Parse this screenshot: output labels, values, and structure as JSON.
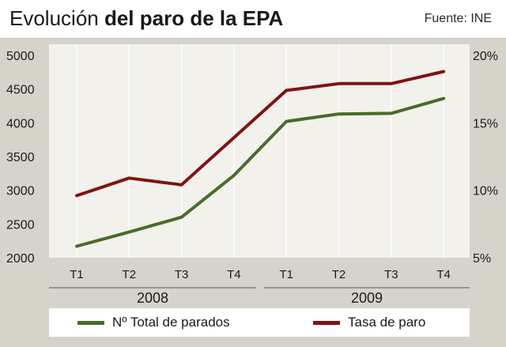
{
  "header": {
    "title_regular": "Evolución",
    "title_bold": "del paro de la EPA",
    "source": "Fuente: INE"
  },
  "chart_data": {
    "type": "line",
    "categories": [
      "T1",
      "T2",
      "T3",
      "T4",
      "T1",
      "T2",
      "T3",
      "T4"
    ],
    "groups": [
      {
        "label": "2008",
        "quarters": [
          "T1",
          "T2",
          "T3",
          "T4"
        ]
      },
      {
        "label": "2009",
        "quarters": [
          "T1",
          "T2",
          "T3",
          "T4"
        ]
      }
    ],
    "series": [
      {
        "name": "Nº Total de parados",
        "axis": "left",
        "color": "#4a6b2a",
        "values": [
          2170,
          2380,
          2600,
          3220,
          4020,
          4130,
          4140,
          4360
        ]
      },
      {
        "name": "Tasa de paro",
        "axis": "right",
        "color": "#7d1414",
        "values": [
          9.6,
          10.9,
          10.4,
          13.9,
          17.4,
          17.9,
          17.9,
          18.8
        ]
      }
    ],
    "y_left": {
      "ticks": [
        2000,
        2500,
        3000,
        3500,
        4000,
        4500,
        5000
      ],
      "range": [
        2000,
        5000
      ]
    },
    "y_right": {
      "ticks": [
        "5%",
        "10%",
        "15%",
        "20%"
      ],
      "range": [
        5,
        20
      ]
    },
    "grid": true,
    "legend_position": "bottom"
  }
}
